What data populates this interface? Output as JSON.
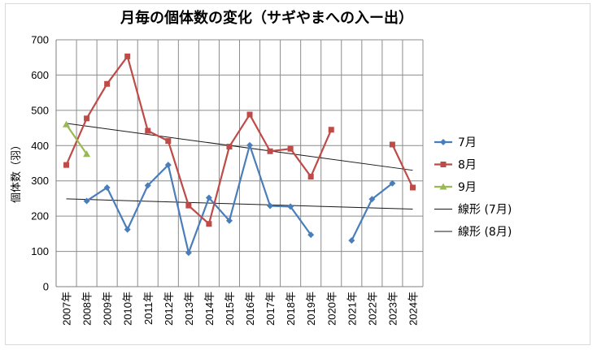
{
  "chart_data": {
    "type": "line",
    "title": "月毎の個体数の変化（サギやまへの入ー出）",
    "xlabel": "",
    "ylabel": "個体数（羽）",
    "ylim": [
      0,
      700
    ],
    "yticks": [
      0,
      100,
      200,
      300,
      400,
      500,
      600,
      700
    ],
    "grid": true,
    "legend_position": "right",
    "categories": [
      "2007年",
      "2008年",
      "2009年",
      "2010年",
      "2011年",
      "2012年",
      "2013年",
      "2014年",
      "2015年",
      "2016年",
      "2017年",
      "2018年",
      "2019年",
      "2020年",
      "2021年",
      "2022年",
      "2023年",
      "2024年"
    ],
    "series": [
      {
        "name": "7月",
        "color": "#4a7ebb",
        "marker": "diamond",
        "values": [
          null,
          243,
          281,
          162,
          287,
          345,
          96,
          252,
          187,
          401,
          229,
          227,
          147,
          null,
          131,
          248,
          293,
          null
        ]
      },
      {
        "name": "8月",
        "color": "#be4b48",
        "marker": "square",
        "values": [
          345,
          477,
          575,
          653,
          442,
          413,
          230,
          178,
          397,
          488,
          384,
          391,
          312,
          445,
          null,
          null,
          403,
          281
        ]
      },
      {
        "name": "9月",
        "color": "#98b954",
        "marker": "triangle",
        "values": [
          460,
          376,
          null,
          null,
          null,
          null,
          null,
          null,
          null,
          null,
          null,
          null,
          null,
          null,
          null,
          null,
          null,
          null
        ]
      }
    ],
    "trendlines": [
      {
        "name": "線形 (7月)",
        "of_series": "7月",
        "start": 249,
        "end": 220,
        "color": "#1a1a1a"
      },
      {
        "name": "線形 (8月)",
        "of_series": "8月",
        "start": 463,
        "end": 330,
        "color": "#1a1a1a"
      }
    ]
  }
}
